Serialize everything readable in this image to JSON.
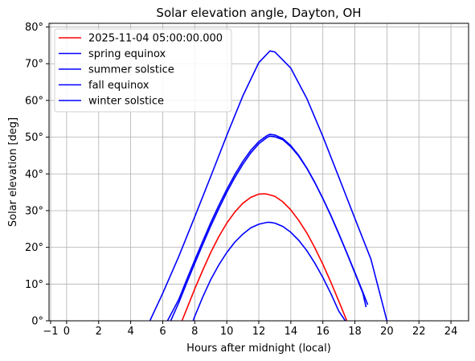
{
  "chart_data": {
    "type": "line",
    "title": "Solar elevation angle, Dayton, OH",
    "xlabel": "Hours after midnight (local)",
    "ylabel": "Solar elevation [deg]",
    "xlim": [
      -1.1,
      25.1
    ],
    "ylim": [
      0,
      81
    ],
    "xticks": [
      -1,
      0,
      2,
      4,
      6,
      8,
      10,
      12,
      14,
      16,
      18,
      20,
      22,
      24
    ],
    "xtick_labels": [
      "−1",
      "0",
      "2",
      "4",
      "6",
      "8",
      "10",
      "12",
      "14",
      "16",
      "18",
      "20",
      "22",
      "24"
    ],
    "yticks": [
      0,
      10,
      20,
      30,
      40,
      50,
      60,
      70,
      80
    ],
    "ytick_labels": [
      "0°",
      "10°",
      "20°",
      "30°",
      "40°",
      "50°",
      "60°",
      "70°",
      "80°"
    ],
    "grid": true,
    "legend_position": "top-left",
    "series": [
      {
        "name": "2025-11-04 05:00:00.000",
        "color": "#ff0000",
        "x": [
          7.2,
          7.5,
          8,
          8.5,
          9,
          9.5,
          10,
          10.5,
          11,
          11.5,
          12,
          12.35,
          12.5,
          13,
          13.5,
          14,
          14.5,
          15,
          15.5,
          16,
          16.5,
          17,
          17.5
        ],
        "y": [
          0,
          3.2,
          8.7,
          13.8,
          18.6,
          22.9,
          26.6,
          29.6,
          32.0,
          33.6,
          34.5,
          34.6,
          34.5,
          33.9,
          32.4,
          30.2,
          27.3,
          23.9,
          19.9,
          15.4,
          10.5,
          5.3,
          0
        ]
      },
      {
        "name": "spring equinox",
        "color": "#0000ff",
        "x": [
          6.5,
          7,
          7.5,
          8,
          8.5,
          9,
          9.5,
          10,
          10.5,
          11,
          11.5,
          12,
          12.5,
          12.7,
          13,
          13.5,
          14,
          14.5,
          15,
          15.5,
          16,
          16.5,
          17,
          17.5,
          18,
          18.5,
          18.8
        ],
        "y": [
          0,
          4.9,
          10.3,
          15.6,
          20.8,
          25.8,
          30.5,
          35.0,
          39.0,
          42.6,
          45.7,
          48.2,
          49.9,
          50.3,
          50.1,
          49.3,
          47.4,
          44.8,
          41.5,
          37.6,
          33.3,
          28.7,
          23.7,
          18.5,
          13.2,
          7.8,
          4.4
        ]
      },
      {
        "name": "summer solstice",
        "color": "#0000ff",
        "x": [
          5.2,
          6,
          7,
          8,
          9,
          10,
          11,
          12,
          12.7,
          13,
          14,
          15,
          16,
          17,
          18,
          19,
          20
        ],
        "y": [
          0,
          7.5,
          17.5,
          28.3,
          39.3,
          50.5,
          61.2,
          70.3,
          73.5,
          73.2,
          68.8,
          60.5,
          50.2,
          39.1,
          27.9,
          16.8,
          0
        ]
      },
      {
        "name": "fall equinox",
        "color": "#0000ff",
        "x": [
          6.3,
          7,
          7.5,
          8,
          8.5,
          9,
          9.5,
          10,
          10.5,
          11,
          11.5,
          12,
          12.5,
          12.7,
          13,
          13.5,
          14,
          14.5,
          15,
          15.5,
          16,
          16.5,
          17,
          17.5,
          18,
          18.5,
          18.7
        ],
        "y": [
          0,
          5.8,
          11.2,
          16.5,
          21.7,
          26.7,
          31.4,
          35.8,
          39.8,
          43.4,
          46.4,
          48.8,
          50.4,
          50.8,
          50.6,
          49.6,
          47.7,
          45.0,
          41.6,
          37.7,
          33.3,
          28.6,
          23.6,
          18.4,
          13.0,
          7.5,
          3.7
        ]
      },
      {
        "name": "winter solstice",
        "color": "#0000ff",
        "x": [
          7.9,
          8,
          8.5,
          9,
          9.5,
          10,
          10.5,
          11,
          11.5,
          12,
          12.5,
          12.7,
          13,
          13.5,
          14,
          14.5,
          15,
          15.5,
          16,
          16.5,
          17,
          17.4
        ],
        "y": [
          0,
          1.2,
          6.5,
          11.2,
          15.2,
          18.6,
          21.4,
          23.6,
          25.3,
          26.3,
          26.8,
          26.8,
          26.6,
          25.7,
          24.1,
          21.9,
          19.1,
          15.7,
          11.8,
          7.4,
          2.6,
          0
        ]
      }
    ]
  }
}
